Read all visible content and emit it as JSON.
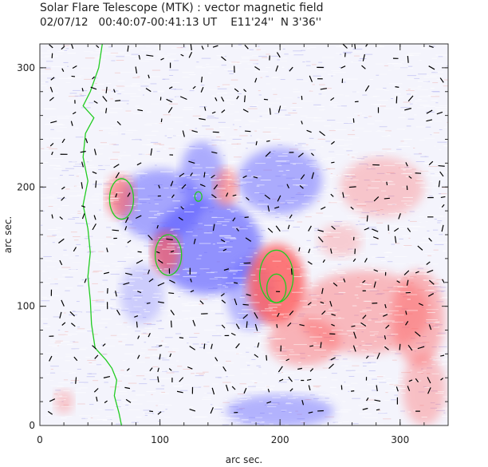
{
  "title": "Solar Flare Telescope (MTK) : vector magnetic field",
  "subtitle": {
    "date": "02/07/12",
    "time": "00:40:07-00:41:13 UT",
    "position": "E11'24''  N 3'36''"
  },
  "axes": {
    "xlabel": "arc sec.",
    "ylabel": "arc sec.",
    "xlim": [
      0,
      340
    ],
    "ylim": [
      0,
      320
    ],
    "xticks": [
      "0",
      "100",
      "200",
      "300"
    ],
    "yticks": [
      "0",
      "100",
      "200",
      "300"
    ]
  },
  "colors": {
    "positive_polarity": "#ff5a5a",
    "negative_polarity": "#5a5aff",
    "contour": "#22cc22",
    "vectors": "#000000"
  },
  "regions": {
    "positive": [
      {
        "x": 197,
        "y": 118,
        "rx": 24,
        "ry": 34,
        "strength": 0.95
      },
      {
        "x": 105,
        "y": 145,
        "rx": 12,
        "ry": 18,
        "strength": 0.8
      },
      {
        "x": 67,
        "y": 192,
        "rx": 12,
        "ry": 18,
        "strength": 0.7
      },
      {
        "x": 155,
        "y": 200,
        "rx": 10,
        "ry": 16,
        "strength": 0.6
      },
      {
        "x": 270,
        "y": 95,
        "rx": 55,
        "ry": 35,
        "strength": 0.45
      },
      {
        "x": 315,
        "y": 90,
        "rx": 22,
        "ry": 40,
        "strength": 0.5
      },
      {
        "x": 220,
        "y": 70,
        "rx": 30,
        "ry": 20,
        "strength": 0.5
      },
      {
        "x": 285,
        "y": 200,
        "rx": 35,
        "ry": 25,
        "strength": 0.35
      },
      {
        "x": 320,
        "y": 30,
        "rx": 18,
        "ry": 30,
        "strength": 0.4
      },
      {
        "x": 20,
        "y": 20,
        "rx": 8,
        "ry": 10,
        "strength": 0.35
      },
      {
        "x": 250,
        "y": 155,
        "rx": 18,
        "ry": 14,
        "strength": 0.3
      }
    ],
    "negative": [
      {
        "x": 140,
        "y": 150,
        "rx": 45,
        "ry": 40,
        "strength": 0.75
      },
      {
        "x": 100,
        "y": 185,
        "rx": 35,
        "ry": 30,
        "strength": 0.6
      },
      {
        "x": 135,
        "y": 210,
        "rx": 18,
        "ry": 28,
        "strength": 0.55
      },
      {
        "x": 200,
        "y": 205,
        "rx": 35,
        "ry": 28,
        "strength": 0.55
      },
      {
        "x": 175,
        "y": 110,
        "rx": 20,
        "ry": 30,
        "strength": 0.45
      },
      {
        "x": 200,
        "y": 12,
        "rx": 45,
        "ry": 14,
        "strength": 0.5
      },
      {
        "x": 85,
        "y": 110,
        "rx": 18,
        "ry": 25,
        "strength": 0.3
      }
    ]
  },
  "contours": [
    {
      "x": 197,
      "y": 125,
      "rx": 14,
      "ry": 22
    },
    {
      "x": 197,
      "y": 115,
      "rx": 8,
      "ry": 12
    },
    {
      "x": 107,
      "y": 143,
      "rx": 11,
      "ry": 17
    },
    {
      "x": 68,
      "y": 190,
      "rx": 10,
      "ry": 17
    },
    {
      "x": 132,
      "y": 192,
      "rx": 3,
      "ry": 4
    }
  ],
  "limb": [
    [
      52,
      320
    ],
    [
      49,
      300
    ],
    [
      42,
      280
    ],
    [
      36,
      268
    ],
    [
      45,
      258
    ],
    [
      38,
      245
    ],
    [
      36,
      225
    ],
    [
      40,
      205
    ],
    [
      36,
      185
    ],
    [
      40,
      165
    ],
    [
      42,
      145
    ],
    [
      40,
      125
    ],
    [
      42,
      105
    ],
    [
      43,
      85
    ],
    [
      46,
      65
    ],
    [
      55,
      55
    ],
    [
      60,
      48
    ],
    [
      64,
      38
    ],
    [
      62,
      25
    ],
    [
      66,
      10
    ],
    [
      68,
      0
    ]
  ]
}
